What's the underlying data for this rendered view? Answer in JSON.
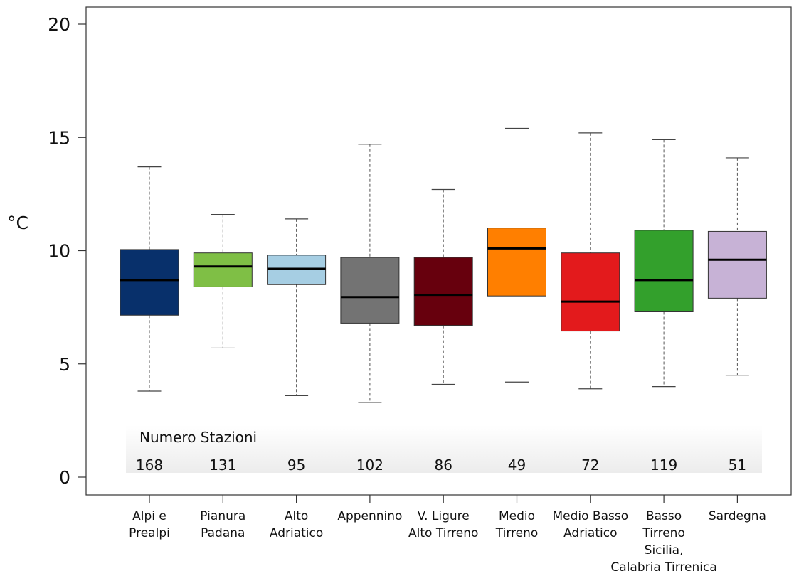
{
  "chart_data": {
    "type": "box",
    "ylabel": "°C",
    "ylim": [
      0,
      20.5
    ],
    "yticks": [
      0,
      5,
      10,
      15,
      20
    ],
    "grid": false,
    "stations_title": "Numero Stazioni",
    "categories": [
      {
        "label_lines": [
          "Alpi e",
          "Prealpi"
        ],
        "color": "#08306b",
        "whisker_low": 3.8,
        "q1": 7.15,
        "median": 8.7,
        "q3": 10.05,
        "whisker_high": 13.7,
        "stations": "168"
      },
      {
        "label_lines": [
          "Pianura",
          "Padana"
        ],
        "color": "#7fbf45",
        "whisker_low": 5.7,
        "q1": 8.4,
        "median": 9.3,
        "q3": 9.9,
        "whisker_high": 11.6,
        "stations": "131"
      },
      {
        "label_lines": [
          "Alto",
          "Adriatico"
        ],
        "color": "#a6cee3",
        "whisker_low": 3.6,
        "q1": 8.5,
        "median": 9.2,
        "q3": 9.8,
        "whisker_high": 11.4,
        "stations": "95"
      },
      {
        "label_lines": [
          "Appennino"
        ],
        "color": "#737373",
        "whisker_low": 3.3,
        "q1": 6.8,
        "median": 7.95,
        "q3": 9.7,
        "whisker_high": 14.7,
        "stations": "102"
      },
      {
        "label_lines": [
          "V. Ligure",
          "Alto Tirreno"
        ],
        "color": "#67000d",
        "whisker_low": 4.1,
        "q1": 6.7,
        "median": 8.05,
        "q3": 9.7,
        "whisker_high": 12.7,
        "stations": "86"
      },
      {
        "label_lines": [
          "Medio",
          "Tirreno"
        ],
        "color": "#ff7f00",
        "whisker_low": 4.2,
        "q1": 8.0,
        "median": 10.1,
        "q3": 11.0,
        "whisker_high": 15.4,
        "stations": "49"
      },
      {
        "label_lines": [
          "Medio Basso",
          "Adriatico"
        ],
        "color": "#e31a1c",
        "whisker_low": 3.9,
        "q1": 6.45,
        "median": 7.75,
        "q3": 9.9,
        "whisker_high": 15.2,
        "stations": "72"
      },
      {
        "label_lines": [
          "Basso",
          "Tirreno",
          "Sicilia,",
          "Calabria Tirrenica"
        ],
        "color": "#33a02c",
        "whisker_low": 4.0,
        "q1": 7.3,
        "median": 8.7,
        "q3": 10.9,
        "whisker_high": 14.9,
        "stations": "119"
      },
      {
        "label_lines": [
          "Sardegna"
        ],
        "color": "#c7b2d6",
        "whisker_low": 4.5,
        "q1": 7.9,
        "median": 9.6,
        "q3": 10.85,
        "whisker_high": 14.1,
        "stations": "51"
      }
    ]
  }
}
